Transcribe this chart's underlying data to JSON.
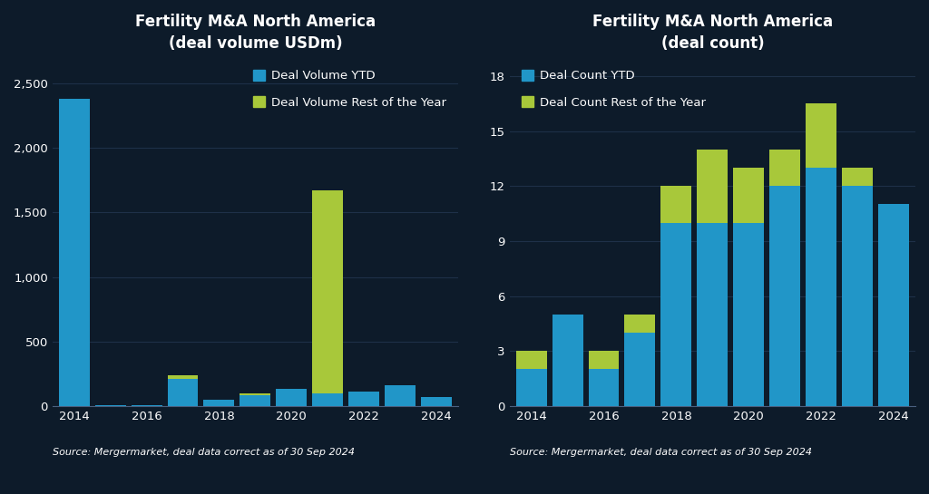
{
  "left_chart": {
    "title": "Fertility M&A North America\n(deal volume USDm)",
    "years": [
      2014,
      2015,
      2016,
      2017,
      2018,
      2019,
      2020,
      2021,
      2022,
      2023,
      2024
    ],
    "ytd": [
      2380,
      5,
      5,
      210,
      50,
      80,
      130,
      100,
      110,
      160,
      70
    ],
    "rest": [
      0,
      0,
      0,
      30,
      0,
      20,
      0,
      1570,
      0,
      0,
      0
    ],
    "ytd_color": "#2196c8",
    "rest_color": "#a8c83a",
    "ylim": [
      0,
      2700
    ],
    "yticks": [
      0,
      500,
      1000,
      1500,
      2000,
      2500
    ],
    "ytick_labels": [
      "0",
      "500",
      "1,000",
      "1,500",
      "2,000",
      "2,500"
    ],
    "legend_ytd": "Deal Volume YTD",
    "legend_rest": "Deal Volume Rest of the Year",
    "legend_loc": "upper right",
    "source": "Source: Mergermarket, deal data correct as of 30 Sep 2024"
  },
  "right_chart": {
    "title": "Fertility M&A North America\n(deal count)",
    "years": [
      2014,
      2015,
      2016,
      2017,
      2018,
      2019,
      2020,
      2021,
      2022,
      2023,
      2024
    ],
    "ytd": [
      2,
      5,
      2,
      4,
      10,
      10,
      10,
      12,
      13,
      12,
      11
    ],
    "rest": [
      1,
      0,
      1,
      1,
      2,
      4,
      3,
      2,
      3.5,
      1,
      0
    ],
    "ytd_color": "#2196c8",
    "rest_color": "#a8c83a",
    "ylim": [
      0,
      19
    ],
    "yticks": [
      0,
      3,
      6,
      9,
      12,
      15,
      18
    ],
    "ytick_labels": [
      "0",
      "3",
      "6",
      "9",
      "12",
      "15",
      "18"
    ],
    "legend_ytd": "Deal Count YTD",
    "legend_rest": "Deal Count Rest of the Year",
    "legend_loc": "upper left",
    "source": "Source: Mergermarket, deal data correct as of 30 Sep 2024"
  },
  "background_color": "#0d1b2a",
  "text_color": "#ffffff",
  "grid_color": "#1e3048",
  "bar_width": 0.85,
  "title_fontsize": 12,
  "tick_fontsize": 9.5,
  "legend_fontsize": 9.5,
  "source_fontsize": 8
}
